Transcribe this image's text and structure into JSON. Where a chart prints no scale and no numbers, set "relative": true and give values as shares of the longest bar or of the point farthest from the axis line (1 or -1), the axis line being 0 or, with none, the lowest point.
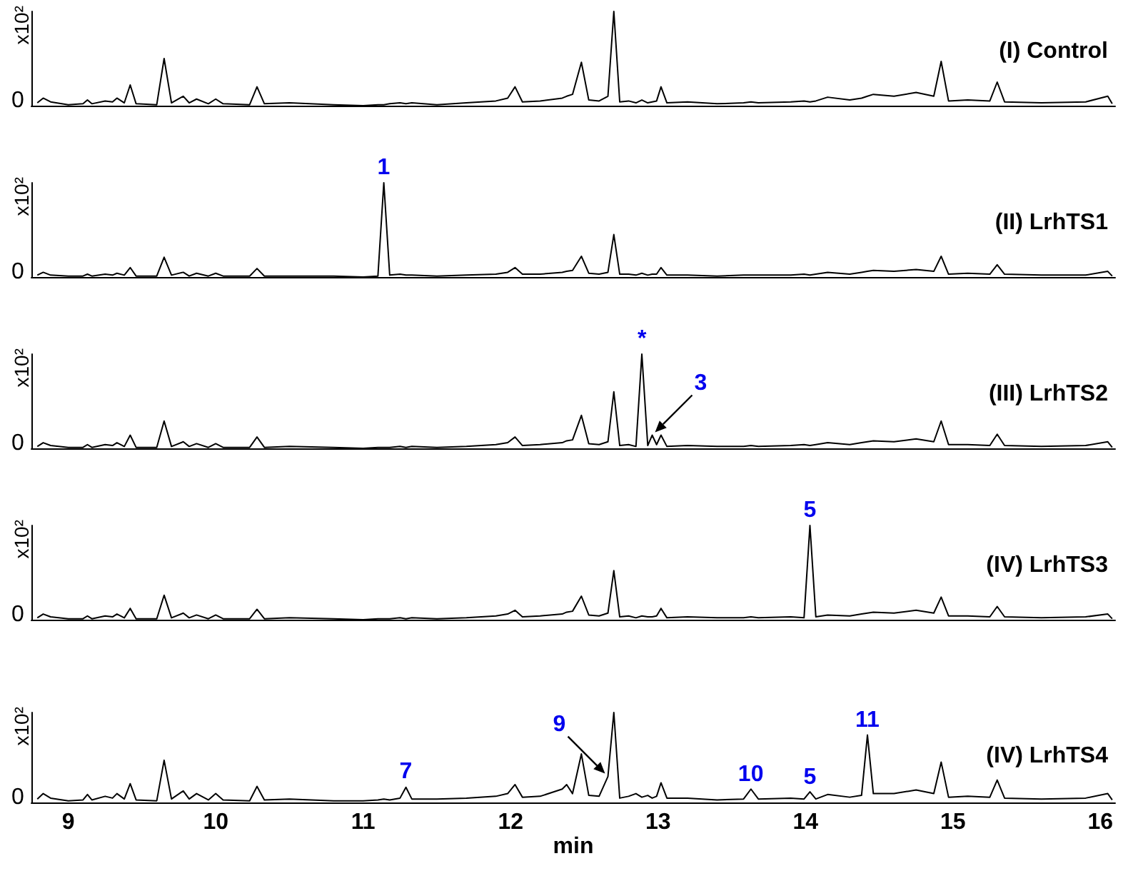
{
  "chart_data": [
    {
      "type": "line",
      "title": "(I) Control",
      "ylabel": "x10²",
      "relative": true,
      "color": "#000000",
      "marker": "none",
      "tick_labels": false,
      "xlim": [
        8.75,
        16.1
      ],
      "xticks": [
        9,
        10,
        11,
        12,
        13,
        14,
        15,
        16
      ],
      "x": [
        8.79,
        8.83,
        8.88,
        9.0,
        9.1,
        9.13,
        9.16,
        9.25,
        9.3,
        9.33,
        9.38,
        9.42,
        9.46,
        9.6,
        9.65,
        9.7,
        9.78,
        9.82,
        9.87,
        9.95,
        10.0,
        10.05,
        10.23,
        10.28,
        10.33,
        10.5,
        10.8,
        11.0,
        11.1,
        11.14,
        11.18,
        11.25,
        11.29,
        11.33,
        11.5,
        11.7,
        11.9,
        11.98,
        12.03,
        12.08,
        12.2,
        12.35,
        12.38,
        12.42,
        12.48,
        12.53,
        12.6,
        12.66,
        12.7,
        12.74,
        12.8,
        12.85,
        12.89,
        12.93,
        12.96,
        12.99,
        13.02,
        13.06,
        13.2,
        13.4,
        13.58,
        13.63,
        13.68,
        13.9,
        13.99,
        14.03,
        14.07,
        14.15,
        14.3,
        14.38,
        14.42,
        14.46,
        14.6,
        14.75,
        14.87,
        14.92,
        14.97,
        15.1,
        15.25,
        15.3,
        15.35,
        15.6,
        15.9,
        16.05,
        16.08
      ],
      "values": [
        0.03,
        0.08,
        0.04,
        0.01,
        0.02,
        0.06,
        0.02,
        0.05,
        0.04,
        0.08,
        0.03,
        0.22,
        0.02,
        0.01,
        0.5,
        0.03,
        0.1,
        0.03,
        0.07,
        0.02,
        0.07,
        0.02,
        0.01,
        0.2,
        0.02,
        0.03,
        0.01,
        0.0,
        0.01,
        0.01,
        0.02,
        0.03,
        0.02,
        0.03,
        0.01,
        0.03,
        0.05,
        0.08,
        0.2,
        0.04,
        0.05,
        0.08,
        0.1,
        0.12,
        0.46,
        0.06,
        0.05,
        0.1,
        1,
        0.04,
        0.05,
        0.03,
        0.06,
        0.03,
        0.04,
        0.05,
        0.2,
        0.03,
        0.04,
        0.02,
        0.03,
        0.04,
        0.03,
        0.04,
        0.05,
        0.04,
        0.05,
        0.09,
        0.06,
        0.08,
        0.1,
        0.12,
        0.1,
        0.14,
        0.1,
        0.47,
        0.05,
        0.06,
        0.05,
        0.25,
        0.04,
        0.03,
        0.04,
        0.1,
        0.02
      ],
      "annotations": [
        "0"
      ]
    },
    {
      "type": "line",
      "title": "(II) LrhTS1",
      "ylabel": "x10²",
      "relative": true,
      "color": "#000000",
      "marker": "none",
      "tick_labels": false,
      "xlim": [
        8.75,
        16.1
      ],
      "xticks": [
        9,
        10,
        11,
        12,
        13,
        14,
        15,
        16
      ],
      "x": [
        8.79,
        8.83,
        8.88,
        9.0,
        9.1,
        9.13,
        9.16,
        9.25,
        9.3,
        9.33,
        9.38,
        9.42,
        9.46,
        9.6,
        9.65,
        9.7,
        9.78,
        9.82,
        9.87,
        9.95,
        10.0,
        10.05,
        10.23,
        10.28,
        10.33,
        10.5,
        10.8,
        11.0,
        11.1,
        11.14,
        11.18,
        11.25,
        11.29,
        11.33,
        11.5,
        11.7,
        11.9,
        11.98,
        12.03,
        12.08,
        12.2,
        12.35,
        12.38,
        12.42,
        12.48,
        12.53,
        12.6,
        12.66,
        12.7,
        12.74,
        12.8,
        12.85,
        12.89,
        12.93,
        12.96,
        12.99,
        13.02,
        13.06,
        13.2,
        13.4,
        13.58,
        13.63,
        13.68,
        13.9,
        13.99,
        14.03,
        14.07,
        14.15,
        14.3,
        14.38,
        14.42,
        14.46,
        14.6,
        14.75,
        14.87,
        14.92,
        14.97,
        15.1,
        15.25,
        15.3,
        15.35,
        15.6,
        15.9,
        16.05,
        16.08
      ],
      "values": [
        0.02,
        0.05,
        0.02,
        0.01,
        0.01,
        0.03,
        0.01,
        0.03,
        0.02,
        0.04,
        0.02,
        0.1,
        0.01,
        0.01,
        0.21,
        0.02,
        0.05,
        0.01,
        0.04,
        0.01,
        0.04,
        0.01,
        0.01,
        0.09,
        0.01,
        0.01,
        0.01,
        0.0,
        0.01,
        1,
        0.02,
        0.03,
        0.02,
        0.02,
        0.01,
        0.02,
        0.03,
        0.05,
        0.1,
        0.03,
        0.03,
        0.05,
        0.06,
        0.07,
        0.22,
        0.04,
        0.03,
        0.05,
        0.45,
        0.03,
        0.03,
        0.02,
        0.04,
        0.02,
        0.03,
        0.03,
        0.1,
        0.02,
        0.02,
        0.01,
        0.02,
        0.02,
        0.02,
        0.02,
        0.03,
        0.02,
        0.03,
        0.05,
        0.03,
        0.05,
        0.06,
        0.07,
        0.06,
        0.08,
        0.06,
        0.22,
        0.03,
        0.04,
        0.03,
        0.13,
        0.03,
        0.02,
        0.02,
        0.06,
        0.01
      ],
      "annotations": [
        "0",
        {
          "text": "1",
          "x": 11.14,
          "y": 1
        }
      ]
    },
    {
      "type": "line",
      "title": "(III) LrhTS2",
      "ylabel": "x10²",
      "relative": true,
      "color": "#000000",
      "marker": "none",
      "tick_labels": false,
      "xlim": [
        8.75,
        16.1
      ],
      "xticks": [
        9,
        10,
        11,
        12,
        13,
        14,
        15,
        16
      ],
      "x": [
        8.79,
        8.83,
        8.88,
        9.0,
        9.1,
        9.13,
        9.16,
        9.25,
        9.3,
        9.33,
        9.38,
        9.42,
        9.46,
        9.6,
        9.65,
        9.7,
        9.78,
        9.82,
        9.87,
        9.95,
        10.0,
        10.05,
        10.23,
        10.28,
        10.33,
        10.5,
        10.8,
        11.0,
        11.1,
        11.14,
        11.18,
        11.25,
        11.29,
        11.33,
        11.5,
        11.7,
        11.9,
        11.98,
        12.03,
        12.08,
        12.2,
        12.35,
        12.38,
        12.42,
        12.48,
        12.53,
        12.6,
        12.66,
        12.7,
        12.74,
        12.8,
        12.85,
        12.89,
        12.93,
        12.96,
        12.99,
        13.02,
        13.06,
        13.2,
        13.4,
        13.58,
        13.63,
        13.68,
        13.9,
        13.99,
        14.03,
        14.07,
        14.15,
        14.3,
        14.38,
        14.42,
        14.46,
        14.6,
        14.75,
        14.87,
        14.92,
        14.97,
        15.1,
        15.25,
        15.3,
        15.35,
        15.6,
        15.9,
        16.05,
        16.08
      ],
      "values": [
        0.02,
        0.06,
        0.03,
        0.01,
        0.01,
        0.04,
        0.01,
        0.04,
        0.03,
        0.06,
        0.02,
        0.14,
        0.01,
        0.01,
        0.29,
        0.02,
        0.07,
        0.02,
        0.05,
        0.01,
        0.05,
        0.01,
        0.01,
        0.12,
        0.01,
        0.02,
        0.01,
        0.0,
        0.01,
        0.01,
        0.01,
        0.02,
        0.01,
        0.02,
        0.01,
        0.02,
        0.04,
        0.06,
        0.12,
        0.03,
        0.04,
        0.06,
        0.08,
        0.09,
        0.35,
        0.05,
        0.04,
        0.07,
        0.6,
        0.03,
        0.04,
        0.02,
        1,
        0.03,
        0.14,
        0.04,
        0.14,
        0.02,
        0.03,
        0.02,
        0.02,
        0.03,
        0.02,
        0.03,
        0.04,
        0.03,
        0.04,
        0.06,
        0.04,
        0.06,
        0.07,
        0.08,
        0.07,
        0.1,
        0.07,
        0.29,
        0.04,
        0.04,
        0.03,
        0.15,
        0.03,
        0.02,
        0.03,
        0.07,
        0.01
      ],
      "annotations": [
        "0",
        {
          "text": "*",
          "x": 12.89,
          "y": 1
        },
        {
          "text": "3",
          "x": 12.96,
          "y": 0.14
        }
      ]
    },
    {
      "type": "line",
      "title": "(IV) LrhTS3",
      "ylabel": "x10²",
      "relative": true,
      "color": "#000000",
      "marker": "none",
      "tick_labels": false,
      "xlim": [
        8.75,
        16.1
      ],
      "xticks": [
        9,
        10,
        11,
        12,
        13,
        14,
        15,
        16
      ],
      "x": [
        8.79,
        8.83,
        8.88,
        9.0,
        9.1,
        9.13,
        9.16,
        9.25,
        9.3,
        9.33,
        9.38,
        9.42,
        9.46,
        9.6,
        9.65,
        9.7,
        9.78,
        9.82,
        9.87,
        9.95,
        10.0,
        10.05,
        10.23,
        10.28,
        10.33,
        10.5,
        10.8,
        11.0,
        11.1,
        11.14,
        11.18,
        11.25,
        11.29,
        11.33,
        11.5,
        11.7,
        11.9,
        11.98,
        12.03,
        12.08,
        12.2,
        12.35,
        12.38,
        12.42,
        12.48,
        12.53,
        12.6,
        12.66,
        12.7,
        12.74,
        12.8,
        12.85,
        12.89,
        12.93,
        12.96,
        12.99,
        13.02,
        13.06,
        13.2,
        13.4,
        13.58,
        13.63,
        13.68,
        13.9,
        13.99,
        14.03,
        14.07,
        14.15,
        14.3,
        14.38,
        14.42,
        14.46,
        14.6,
        14.75,
        14.87,
        14.92,
        14.97,
        15.1,
        15.25,
        15.3,
        15.35,
        15.6,
        15.9,
        16.05,
        16.08
      ],
      "values": [
        0.02,
        0.06,
        0.03,
        0.01,
        0.01,
        0.04,
        0.01,
        0.04,
        0.03,
        0.06,
        0.02,
        0.12,
        0.01,
        0.01,
        0.26,
        0.02,
        0.07,
        0.02,
        0.05,
        0.01,
        0.05,
        0.01,
        0.01,
        0.11,
        0.01,
        0.02,
        0.01,
        0.0,
        0.01,
        0.01,
        0.01,
        0.02,
        0.01,
        0.02,
        0.01,
        0.02,
        0.04,
        0.06,
        0.1,
        0.03,
        0.04,
        0.06,
        0.08,
        0.09,
        0.25,
        0.05,
        0.04,
        0.07,
        0.52,
        0.03,
        0.04,
        0.02,
        0.04,
        0.03,
        0.03,
        0.04,
        0.12,
        0.02,
        0.03,
        0.02,
        0.02,
        0.03,
        0.02,
        0.03,
        0.02,
        1,
        0.03,
        0.05,
        0.04,
        0.06,
        0.07,
        0.08,
        0.07,
        0.1,
        0.07,
        0.24,
        0.04,
        0.04,
        0.03,
        0.14,
        0.03,
        0.02,
        0.03,
        0.06,
        0.01
      ],
      "annotations": [
        "0",
        {
          "text": "5",
          "x": 14.03,
          "y": 1
        }
      ]
    },
    {
      "type": "line",
      "title": "(IV) LrhTS4",
      "ylabel": "x10²",
      "xlabel": "min",
      "relative": true,
      "color": "#000000",
      "marker": "none",
      "xlim": [
        8.75,
        16.1
      ],
      "xticks": [
        9,
        10,
        11,
        12,
        13,
        14,
        15,
        16
      ],
      "x": [
        8.79,
        8.83,
        8.88,
        9.0,
        9.1,
        9.13,
        9.16,
        9.25,
        9.3,
        9.33,
        9.38,
        9.42,
        9.46,
        9.6,
        9.65,
        9.7,
        9.78,
        9.82,
        9.87,
        9.95,
        10.0,
        10.05,
        10.23,
        10.28,
        10.33,
        10.5,
        10.8,
        11.0,
        11.1,
        11.14,
        11.18,
        11.25,
        11.29,
        11.33,
        11.5,
        11.7,
        11.9,
        11.98,
        12.03,
        12.08,
        12.2,
        12.35,
        12.38,
        12.42,
        12.48,
        12.53,
        12.6,
        12.66,
        12.7,
        12.74,
        12.8,
        12.85,
        12.89,
        12.93,
        12.96,
        12.99,
        13.02,
        13.06,
        13.2,
        13.4,
        13.58,
        13.63,
        13.68,
        13.9,
        13.99,
        14.03,
        14.07,
        14.15,
        14.3,
        14.38,
        14.42,
        14.46,
        14.6,
        14.75,
        14.87,
        14.92,
        14.97,
        15.1,
        15.25,
        15.3,
        15.35,
        15.6,
        15.9,
        16.05,
        16.08
      ],
      "values": [
        0.04,
        0.1,
        0.05,
        0.02,
        0.03,
        0.09,
        0.03,
        0.07,
        0.05,
        0.1,
        0.04,
        0.21,
        0.03,
        0.02,
        0.47,
        0.04,
        0.13,
        0.04,
        0.1,
        0.03,
        0.1,
        0.03,
        0.02,
        0.18,
        0.03,
        0.04,
        0.02,
        0.02,
        0.03,
        0.04,
        0.03,
        0.05,
        0.17,
        0.04,
        0.04,
        0.05,
        0.07,
        0.1,
        0.2,
        0.06,
        0.07,
        0.15,
        0.2,
        0.1,
        0.54,
        0.08,
        0.07,
        0.29,
        1,
        0.05,
        0.07,
        0.1,
        0.06,
        0.08,
        0.05,
        0.07,
        0.22,
        0.05,
        0.05,
        0.03,
        0.04,
        0.15,
        0.04,
        0.05,
        0.04,
        0.12,
        0.04,
        0.09,
        0.06,
        0.08,
        0.75,
        0.1,
        0.1,
        0.14,
        0.1,
        0.45,
        0.06,
        0.07,
        0.06,
        0.25,
        0.05,
        0.04,
        0.05,
        0.1,
        0.03
      ],
      "annotations": [
        "0",
        {
          "text": "7",
          "x": 11.29,
          "y": 0.17
        },
        {
          "text": "9",
          "x": 12.66,
          "y": 0.29
        },
        {
          "text": "10",
          "x": 13.63,
          "y": 0.15
        },
        {
          "text": "5",
          "x": 14.03,
          "y": 0.12
        },
        {
          "text": "11",
          "x": 14.42,
          "y": 0.75
        }
      ]
    }
  ]
}
